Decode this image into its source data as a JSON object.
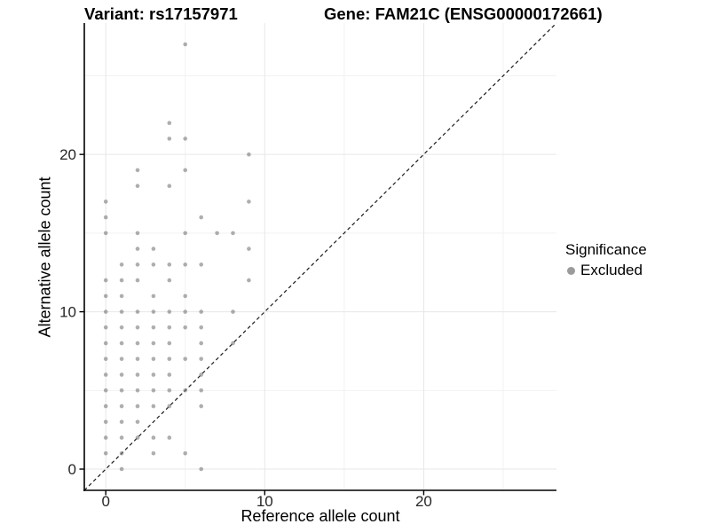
{
  "header": {
    "variant_title": "Variant: rs17157971",
    "gene_title": "Gene: FAM21C (ENSG00000172661)"
  },
  "axes": {
    "x_label": "Reference allele count",
    "y_label": "Alternative allele count",
    "x_tick_values": [
      0,
      10,
      20
    ],
    "y_tick_values": [
      0,
      10,
      20
    ],
    "minor_tick_values": [
      5,
      15,
      25
    ],
    "xlim": [
      -1.35,
      28.35
    ],
    "ylim": [
      -1.35,
      28.35
    ]
  },
  "legend": {
    "title": "Significance",
    "items": [
      {
        "label": "Excluded",
        "color": "#9b9b9b"
      }
    ]
  },
  "style": {
    "point_color": "#787878",
    "point_opacity": 0.6,
    "major_grid_color": "#e7e7e7",
    "minor_grid_color": "#f2f2f2",
    "axis_color": "#000000",
    "identity_line_color": "#1a1a1a",
    "background": "#ffffff"
  },
  "chart_data": {
    "type": "scatter",
    "title": "Variant: rs17157971 / Gene: FAM21C (ENSG00000172661)",
    "xlabel": "Reference allele count",
    "ylabel": "Alternative allele count",
    "xlim": [
      0,
      27
    ],
    "ylim": [
      0,
      27
    ],
    "x_ticks": [
      0,
      10,
      20
    ],
    "y_ticks": [
      0,
      10,
      20
    ],
    "grid": true,
    "legend_position": "right",
    "identity_line": {
      "style": "dashed",
      "equation": "y = x"
    },
    "series": [
      {
        "name": "Excluded",
        "color": "#9b9b9b",
        "points": [
          [
            5,
            27
          ],
          [
            4,
            22
          ],
          [
            4,
            21
          ],
          [
            5,
            21
          ],
          [
            9,
            20
          ],
          [
            2,
            19
          ],
          [
            5,
            19
          ],
          [
            2,
            18
          ],
          [
            4,
            18
          ],
          [
            0,
            17
          ],
          [
            9,
            17
          ],
          [
            0,
            16
          ],
          [
            6,
            16
          ],
          [
            0,
            15
          ],
          [
            2,
            15
          ],
          [
            5,
            15
          ],
          [
            7,
            15
          ],
          [
            8,
            15
          ],
          [
            2,
            14
          ],
          [
            3,
            14
          ],
          [
            9,
            14
          ],
          [
            1,
            13
          ],
          [
            2,
            13
          ],
          [
            3,
            13
          ],
          [
            4,
            13
          ],
          [
            5,
            13
          ],
          [
            6,
            13
          ],
          [
            0,
            12
          ],
          [
            1,
            12
          ],
          [
            2,
            12
          ],
          [
            4,
            12
          ],
          [
            9,
            12
          ],
          [
            0,
            11
          ],
          [
            1,
            11
          ],
          [
            3,
            11
          ],
          [
            5,
            11
          ],
          [
            0,
            10
          ],
          [
            1,
            10
          ],
          [
            2,
            10
          ],
          [
            3,
            10
          ],
          [
            4,
            10
          ],
          [
            5,
            10
          ],
          [
            6,
            10
          ],
          [
            8,
            10
          ],
          [
            0,
            9
          ],
          [
            1,
            9
          ],
          [
            2,
            9
          ],
          [
            3,
            9
          ],
          [
            4,
            9
          ],
          [
            5,
            9
          ],
          [
            6,
            9
          ],
          [
            0,
            8
          ],
          [
            1,
            8
          ],
          [
            2,
            8
          ],
          [
            3,
            8
          ],
          [
            4,
            8
          ],
          [
            6,
            8
          ],
          [
            8,
            8
          ],
          [
            0,
            7
          ],
          [
            1,
            7
          ],
          [
            2,
            7
          ],
          [
            3,
            7
          ],
          [
            4,
            7
          ],
          [
            5,
            7
          ],
          [
            6,
            7
          ],
          [
            0,
            6
          ],
          [
            1,
            6
          ],
          [
            2,
            6
          ],
          [
            3,
            6
          ],
          [
            4,
            6
          ],
          [
            6,
            6
          ],
          [
            0,
            5
          ],
          [
            1,
            5
          ],
          [
            2,
            5
          ],
          [
            3,
            5
          ],
          [
            4,
            5
          ],
          [
            5,
            5
          ],
          [
            6,
            5
          ],
          [
            0,
            4
          ],
          [
            1,
            4
          ],
          [
            2,
            4
          ],
          [
            3,
            4
          ],
          [
            4,
            4
          ],
          [
            6,
            4
          ],
          [
            0,
            3
          ],
          [
            1,
            3
          ],
          [
            2,
            3
          ],
          [
            0,
            2
          ],
          [
            1,
            2
          ],
          [
            2,
            2
          ],
          [
            3,
            2
          ],
          [
            4,
            2
          ],
          [
            0,
            1
          ],
          [
            1,
            1
          ],
          [
            3,
            1
          ],
          [
            5,
            1
          ],
          [
            1,
            0
          ],
          [
            6,
            0
          ]
        ]
      }
    ]
  }
}
